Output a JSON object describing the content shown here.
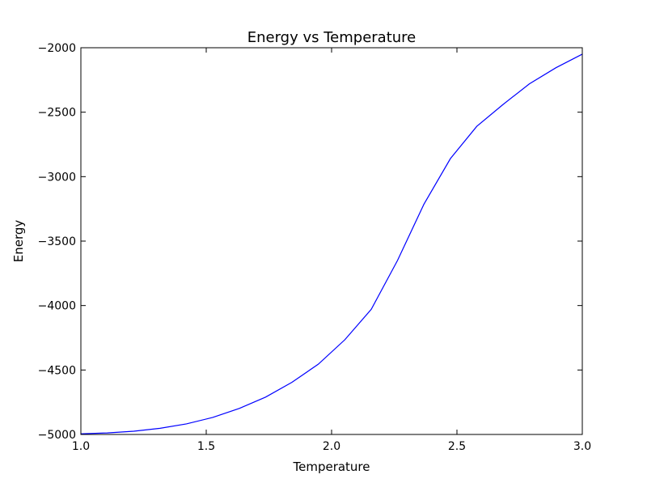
{
  "chart_data": {
    "type": "line",
    "title": "Energy vs Temperature",
    "xlabel": "Temperature",
    "ylabel": "Energy",
    "xlim": [
      1.0,
      3.0
    ],
    "ylim": [
      -5000,
      -2000
    ],
    "xticks": [
      1.0,
      1.5,
      2.0,
      2.5,
      3.0
    ],
    "xtick_labels": [
      "1.0",
      "1.5",
      "2.0",
      "2.5",
      "3.0"
    ],
    "yticks": [
      -5000,
      -4500,
      -4000,
      -3500,
      -3000,
      -2500,
      -2000
    ],
    "ytick_labels": [
      "−5000",
      "−4500",
      "−4000",
      "−3500",
      "−3000",
      "−2500",
      "−2000"
    ],
    "grid": false,
    "series": [
      {
        "color": "#0000ff",
        "x": [
          1.0,
          1.105,
          1.211,
          1.316,
          1.421,
          1.526,
          1.632,
          1.737,
          1.842,
          1.947,
          2.053,
          2.158,
          2.263,
          2.368,
          2.474,
          2.579,
          2.684,
          2.789,
          2.895,
          3.0
        ],
        "y": [
          -4995,
          -4988,
          -4975,
          -4952,
          -4918,
          -4868,
          -4798,
          -4710,
          -4595,
          -4455,
          -4265,
          -4030,
          -3650,
          -3215,
          -2860,
          -2610,
          -2440,
          -2280,
          -2155,
          -2050
        ]
      }
    ]
  }
}
